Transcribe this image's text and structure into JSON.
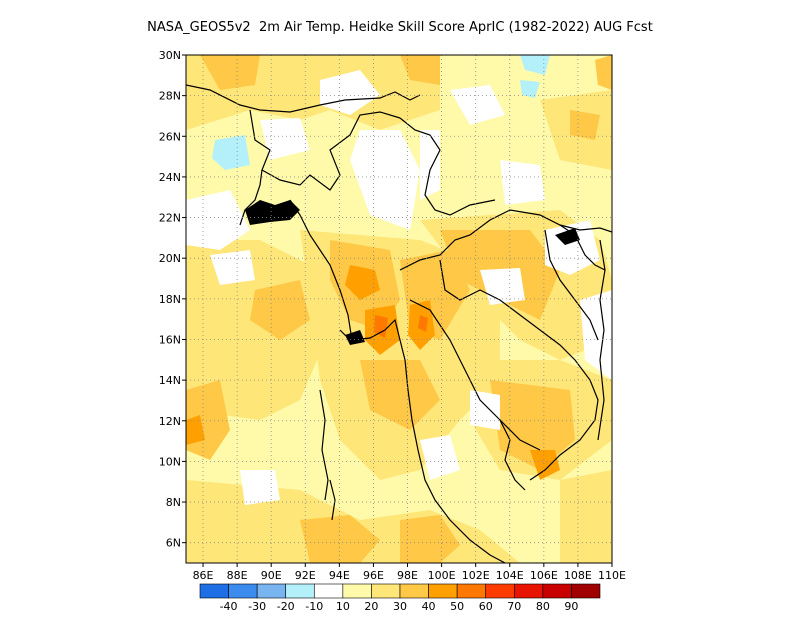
{
  "title": "NASA_GEOS5v2  2m Air Temp. Heidke Skill Score AprIC (1982-2022) AUG Fcst",
  "map": {
    "lon_range": [
      85,
      110
    ],
    "lat_range": [
      5,
      30
    ],
    "lat_ticks": [
      "6N",
      "8N",
      "10N",
      "12N",
      "14N",
      "16N",
      "18N",
      "20N",
      "22N",
      "24N",
      "26N",
      "28N",
      "30N"
    ],
    "lat_values": [
      6,
      8,
      10,
      12,
      14,
      16,
      18,
      20,
      22,
      24,
      26,
      28,
      30
    ],
    "lon_ticks": [
      "86E",
      "88E",
      "90E",
      "92E",
      "94E",
      "96E",
      "98E",
      "100E",
      "102E",
      "104E",
      "106E",
      "108E",
      "110E"
    ],
    "lon_values": [
      86,
      88,
      90,
      92,
      94,
      96,
      98,
      100,
      102,
      104,
      106,
      108,
      110
    ],
    "grid": true,
    "grid_style": "dotted",
    "coastline_color": "#000000"
  },
  "colorbar": {
    "colors": [
      "#1e6ee6",
      "#3c8cf0",
      "#78b4f0",
      "#b4f0fa",
      "#ffffff",
      "#fffaaa",
      "#ffe678",
      "#ffc846",
      "#ffa000",
      "#ff7800",
      "#ff3c00",
      "#e61400",
      "#c80000",
      "#a00000"
    ],
    "labels": [
      "-40",
      "-30",
      "-20",
      "-10",
      "10",
      "20",
      "30",
      "40",
      "50",
      "60",
      "70",
      "80",
      "90"
    ]
  }
}
